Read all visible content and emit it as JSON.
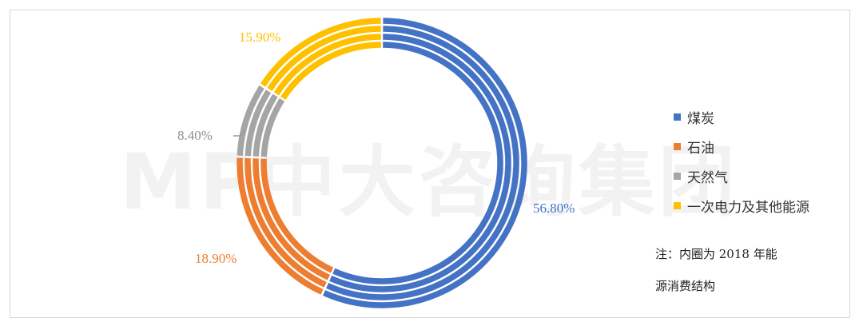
{
  "chart_data": {
    "type": "pie",
    "variant": "multi-ring-donut",
    "rings": 4,
    "categories": [
      "煤炭",
      "石油",
      "天然气",
      "一次电力及其他能源"
    ],
    "values": [
      56.8,
      18.9,
      8.4,
      15.9
    ],
    "labels": [
      "56.80%",
      "18.90%",
      "8.40%",
      "15.90%"
    ],
    "colors": [
      "#4472c4",
      "#ed7d31",
      "#a5a5a5",
      "#ffc000"
    ],
    "title": "",
    "legend_position": "right",
    "note": "注：内圈为 2018 年能源消费结构"
  },
  "note_lines": [
    "注：内圈为 2018 年能",
    "源消费结构"
  ],
  "watermark": "MP中大咨询集团"
}
